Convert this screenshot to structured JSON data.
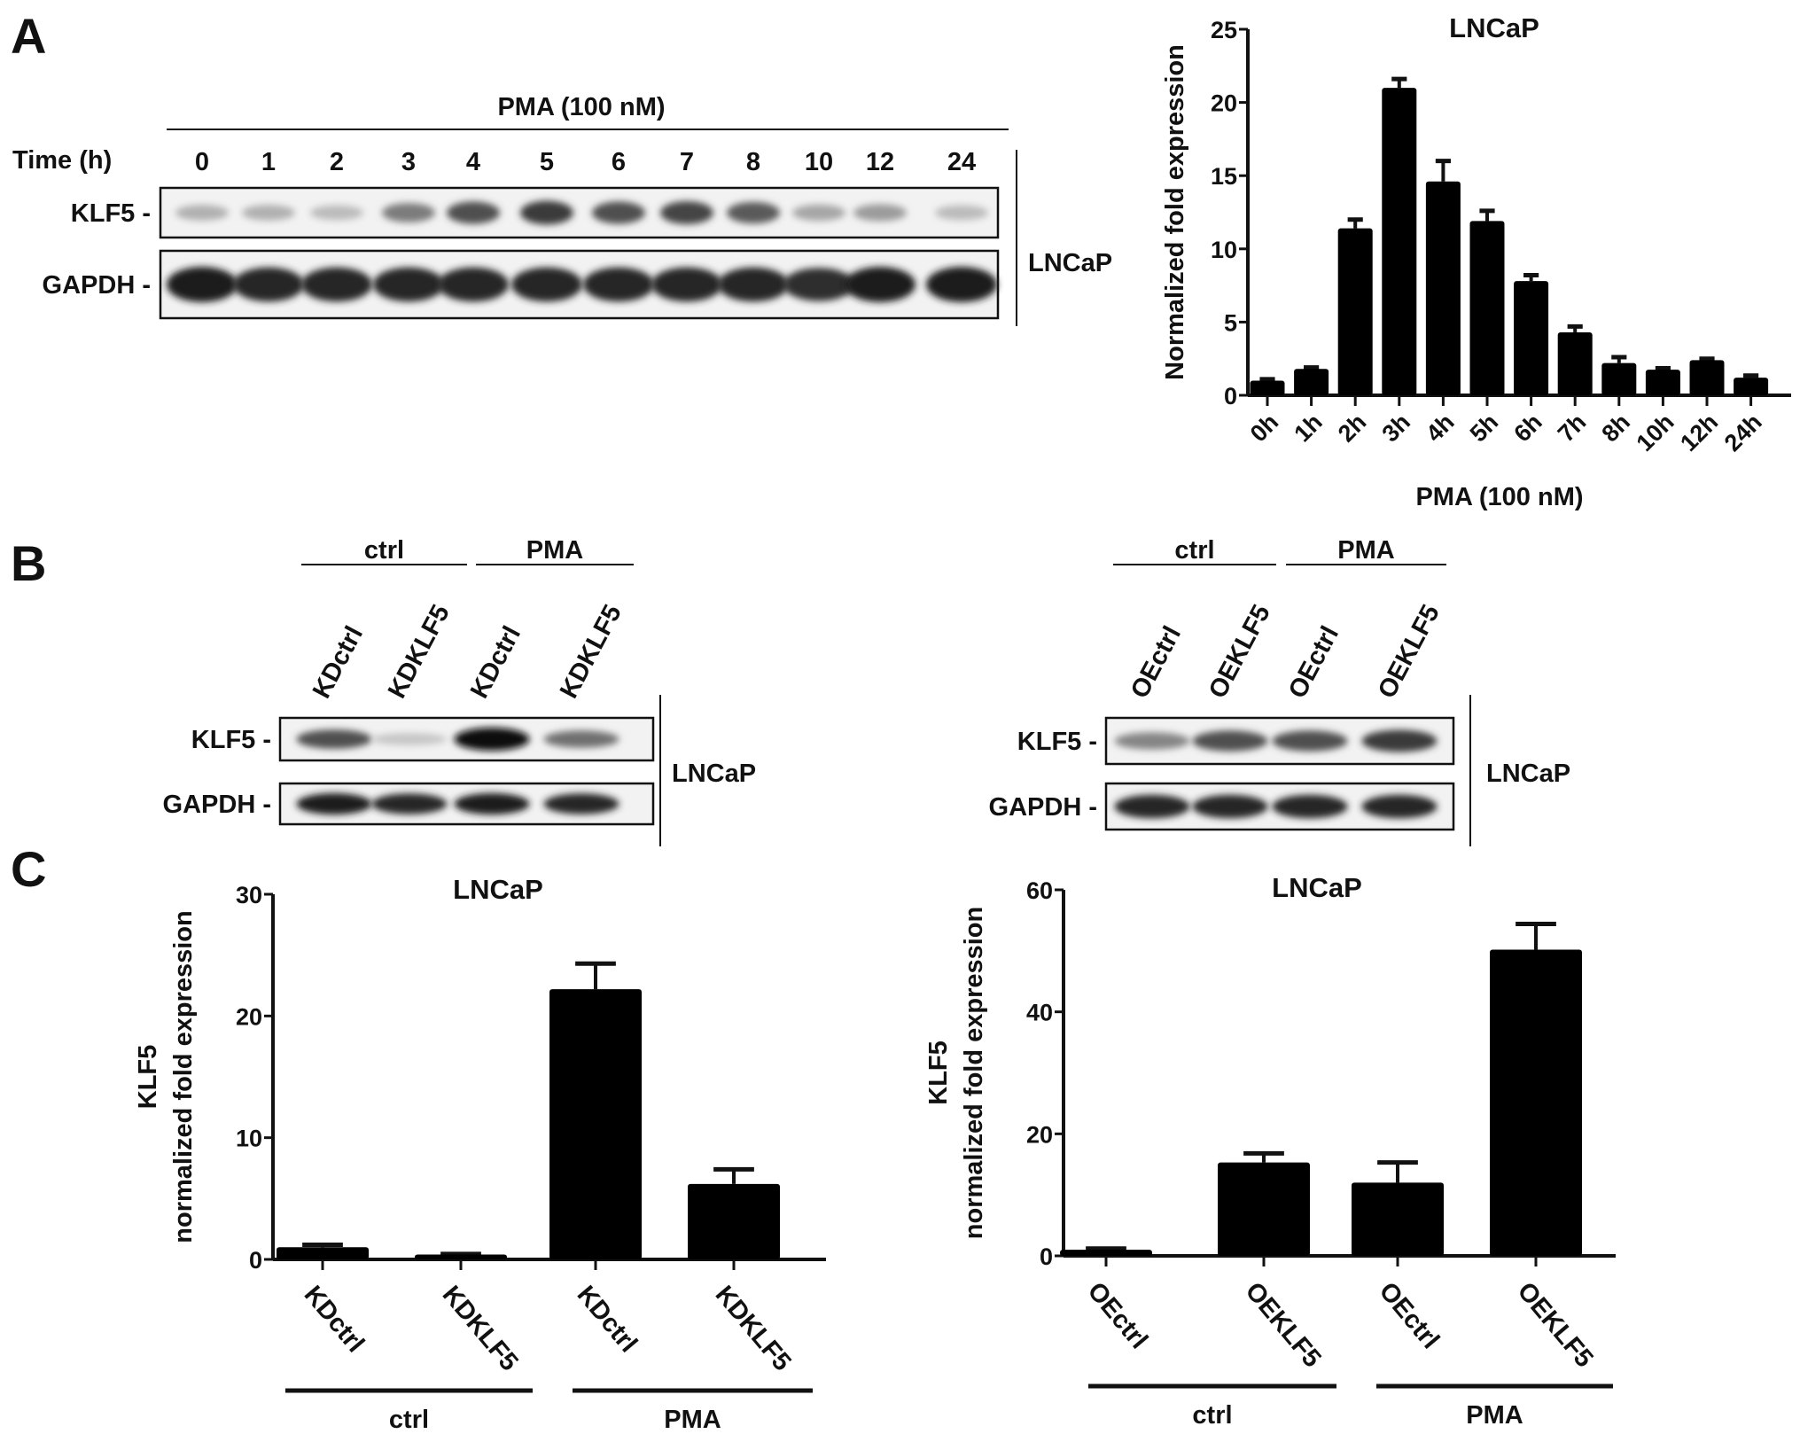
{
  "panels": {
    "a": "A",
    "b": "B",
    "c": "C"
  },
  "blot_a": {
    "treatment": "PMA (100 nM)",
    "time_label": "Time (h)",
    "lanes": [
      "0",
      "1",
      "2",
      "3",
      "4",
      "5",
      "6",
      "7",
      "8",
      "10",
      "12",
      "24"
    ],
    "rows": [
      {
        "label": "KLF5 -",
        "intensity": [
          0.25,
          0.25,
          0.2,
          0.5,
          0.7,
          0.8,
          0.7,
          0.75,
          0.65,
          0.3,
          0.35,
          0.2
        ]
      },
      {
        "label": "GAPDH -",
        "intensity": [
          0.95,
          0.9,
          0.9,
          0.9,
          0.9,
          0.9,
          0.9,
          0.9,
          0.9,
          0.85,
          0.95,
          0.95
        ]
      }
    ],
    "cell_line": "LNCaP"
  },
  "blot_b_left": {
    "groups": [
      "ctrl",
      "PMA"
    ],
    "lanes": [
      "KDctrl",
      "KDKLF5",
      "KDctrl",
      "KDKLF5"
    ],
    "rows": [
      {
        "label": "KLF5 -",
        "intensity": [
          0.7,
          0.15,
          1.0,
          0.55
        ]
      },
      {
        "label": "GAPDH -",
        "intensity": [
          0.95,
          0.9,
          0.95,
          0.9
        ]
      }
    ],
    "cell_line": "LNCaP"
  },
  "blot_b_right": {
    "groups": [
      "ctrl",
      "PMA"
    ],
    "lanes": [
      "OEctrl",
      "OEKLF5",
      "OEctrl",
      "OEKLF5"
    ],
    "rows": [
      {
        "label": "KLF5 -",
        "intensity": [
          0.45,
          0.7,
          0.7,
          0.8
        ]
      },
      {
        "label": "GAPDH -",
        "intensity": [
          0.9,
          0.9,
          0.9,
          0.9
        ]
      }
    ],
    "cell_line": "LNCaP"
  },
  "chart_data": [
    {
      "type": "bar",
      "title": "LNCaP",
      "xlabel": "PMA (100 nM)",
      "ylabel": "Normalized fold expression",
      "categories": [
        "0h",
        "1h",
        "2h",
        "3h",
        "4h",
        "5h",
        "6h",
        "7h",
        "8h",
        "10h",
        "12h",
        "24h"
      ],
      "values": [
        1.0,
        1.8,
        11.4,
        21.0,
        14.6,
        11.9,
        7.8,
        4.3,
        2.2,
        1.75,
        2.4,
        1.2
      ],
      "errors": [
        0.1,
        0.1,
        0.6,
        0.6,
        1.4,
        0.7,
        0.4,
        0.4,
        0.4,
        0.1,
        0.1,
        0.15
      ],
      "ylim": [
        0,
        25
      ],
      "yticks": [
        "0",
        "5",
        "10",
        "15",
        "20",
        "25"
      ]
    },
    {
      "type": "bar",
      "title": "LNCaP",
      "ylabel": [
        "KLF5",
        "normalized fold expression"
      ],
      "categories": [
        "KDctrl",
        "KDKLF5",
        "KDctrl",
        "KDKLF5"
      ],
      "groups": [
        "ctrl",
        "PMA"
      ],
      "values": [
        1.0,
        0.4,
        22.2,
        6.2
      ],
      "errors": [
        0.2,
        0.05,
        2.1,
        1.2
      ],
      "ylim": [
        0,
        30
      ],
      "yticks": [
        "0",
        "10",
        "20",
        "30"
      ]
    },
    {
      "type": "bar",
      "title": "LNCaP",
      "ylabel": [
        "KLF5",
        "normalized fold expression"
      ],
      "categories": [
        "OEctrl",
        "OEKLF5",
        "OEctrl",
        "OEKLF5"
      ],
      "groups": [
        "ctrl",
        "PMA"
      ],
      "values": [
        1.0,
        15.3,
        12.0,
        50.2
      ],
      "errors": [
        0.2,
        1.5,
        3.3,
        4.2
      ],
      "ylim": [
        0,
        60
      ],
      "yticks": [
        "0",
        "20",
        "40",
        "60"
      ]
    }
  ]
}
